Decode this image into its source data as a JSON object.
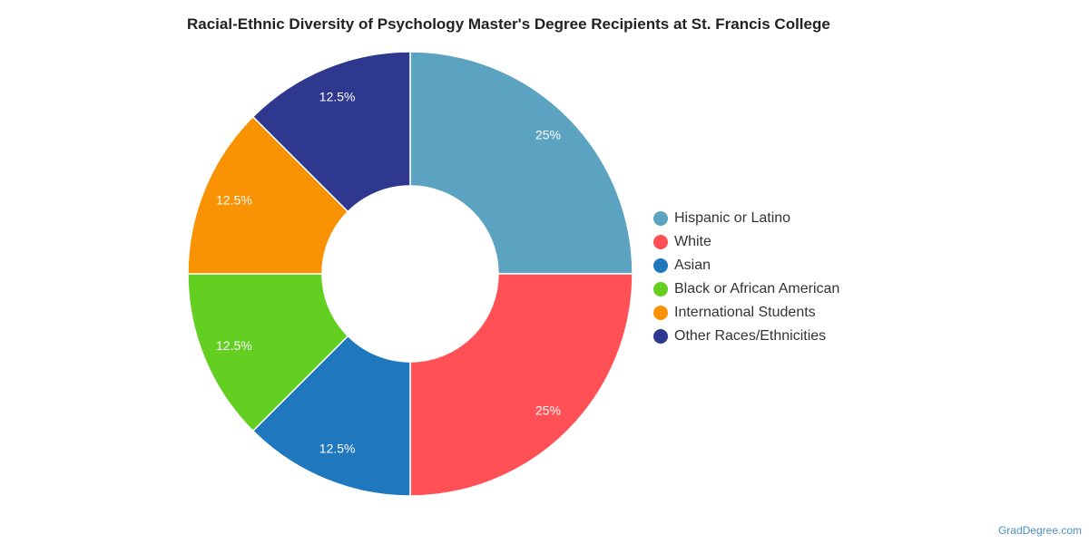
{
  "chart_data": {
    "type": "pie",
    "variant": "donut",
    "title": "Racial-Ethnic Diversity of Psychology Master's Degree Recipients at St. Francis College",
    "slices": [
      {
        "label": "Hispanic or Latino",
        "value": 25,
        "display": "25%",
        "color": "#5ba3c0"
      },
      {
        "label": "White",
        "value": 25,
        "display": "25%",
        "color": "#ff5055"
      },
      {
        "label": "Asian",
        "value": 12.5,
        "display": "12.5%",
        "color": "#1f77bd"
      },
      {
        "label": "Black or African American",
        "value": 12.5,
        "display": "12.5%",
        "color": "#63cf20"
      },
      {
        "label": "International Students",
        "value": 12.5,
        "display": "12.5%",
        "color": "#f99303"
      },
      {
        "label": "Other Races/Ethnicities",
        "value": 12.5,
        "display": "12.5%",
        "color": "#2f388f"
      }
    ],
    "legend_position": "right"
  },
  "watermark": "GradDegree.com"
}
